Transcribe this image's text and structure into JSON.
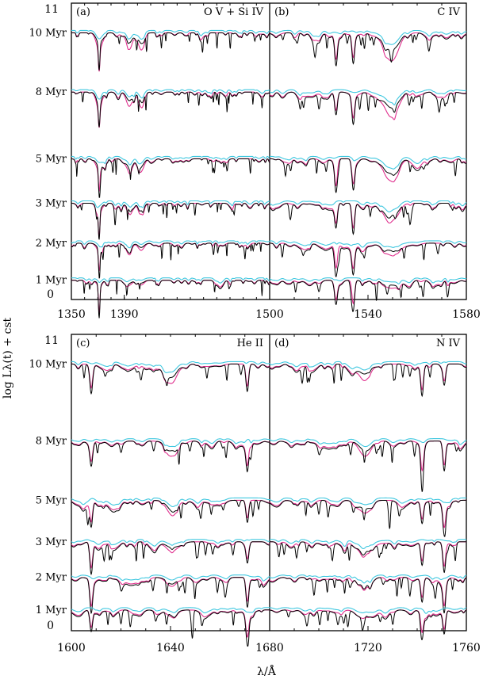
{
  "chart_data": {
    "type": "line",
    "ylabel": "log Lλ(t) + cst",
    "xlabel": "λ/Å",
    "y_top_label": "11",
    "y_bottom_label": "0",
    "ages": [
      "10 Myr",
      "8 Myr",
      "5 Myr",
      "3 Myr",
      "2 Myr",
      "1 Myr"
    ],
    "colors": {
      "model": "#000000",
      "lmc": "#e0308e",
      "smc": "#40c8e0"
    },
    "rows": [
      {
        "age_offsets": [
          0.9,
          0.7,
          0.475,
          0.325,
          0.19,
          0.065
        ],
        "panels": [
          {
            "label": "(a)",
            "title": "O V + Si IV",
            "xlim": [
              1350,
              1500
            ],
            "xticks": [
              1350,
              1390
            ],
            "lines": [
              1371,
              1393.8,
              1402.8
            ],
            "deep": [
              1371
            ]
          },
          {
            "label": "(b)",
            "title": "C IV",
            "xlim": [
              1500,
              1580
            ],
            "xticks": [
              1500,
              1540,
              1580
            ],
            "lines": [
              1548.2,
              1550.8
            ],
            "deep": [
              1527,
              1534
            ]
          }
        ]
      },
      {
        "age_offsets": [
          0.9,
          0.64,
          0.44,
          0.3,
          0.18,
          0.07
        ],
        "panels": [
          {
            "label": "(c)",
            "title": "He II",
            "xlim": [
              1600,
              1680
            ],
            "xticks": [
              1600,
              1640
            ],
            "lines": [
              1640.4
            ],
            "deep": [
              1608,
              1671
            ]
          },
          {
            "label": "(d)",
            "title": "N IV",
            "xlim": [
              1680,
              1760
            ],
            "xticks": [
              1680,
              1720,
              1760
            ],
            "lines": [
              1718.6
            ],
            "deep": [
              1742,
              1751
            ]
          }
        ]
      }
    ]
  }
}
